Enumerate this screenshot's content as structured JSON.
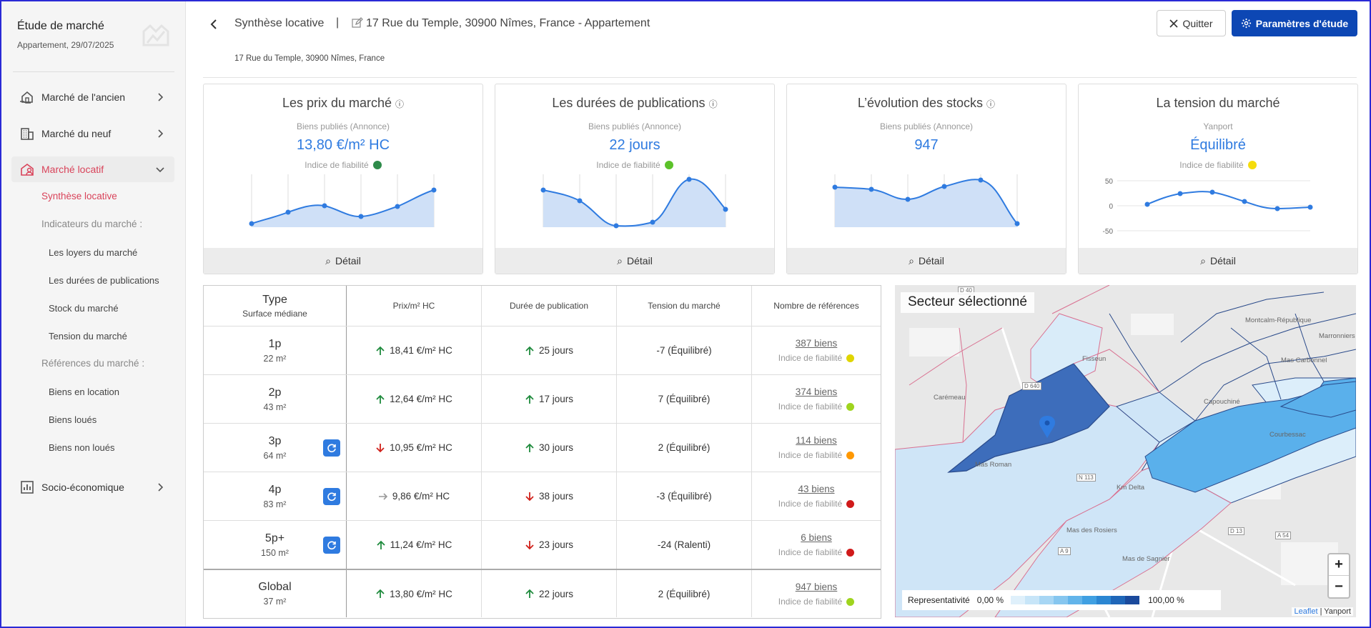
{
  "sidebar": {
    "title": "Étude de marché",
    "subtitle": "Appartement, 29/07/2025",
    "items": [
      {
        "label": "Marché de l'ancien"
      },
      {
        "label": "Marché du neuf"
      },
      {
        "label": "Marché locatif"
      },
      {
        "label": "Socio-économique"
      }
    ],
    "sub": {
      "current": "Synthèse locative",
      "group1": "Indicateurs du marché :",
      "loyers": "Les loyers du marché",
      "durees": "Les durées de publications",
      "stock": "Stock du marché",
      "tension": "Tension du marché",
      "group2": "Références du marché :",
      "location": "Biens en location",
      "loues": "Biens loués",
      "nonloues": "Biens non loués"
    }
  },
  "header": {
    "title": "Synthèse locative",
    "separator": "|",
    "address": "17 Rue du Temple, 30900 Nîmes, France - Appartement",
    "address_small": "17 Rue du Temple, 30900 Nîmes, France",
    "quit": "Quitter",
    "params": "Paramètres d'étude"
  },
  "cards": [
    {
      "title": "Les prix du marché",
      "sub": "Biens publiés (Annonce)",
      "value": "13,80 €/m² HC",
      "fiab": "Indice de fiabilité",
      "dot": "#2e8b4a",
      "detail": "Détail"
    },
    {
      "title": "Les durées de publications",
      "sub": "Biens publiés (Annonce)",
      "value": "22 jours",
      "fiab": "Indice de fiabilité",
      "dot": "#5cc22a",
      "detail": "Détail"
    },
    {
      "title": "L’évolution des stocks",
      "sub": "Biens publiés (Annonce)",
      "value": "947",
      "detail": "Détail"
    },
    {
      "title": "La tension du marché",
      "sub": "Yanport",
      "value": "Équilibré",
      "fiab": "Indice de fiabilité",
      "dot": "#f5dc0c",
      "detail": "Détail",
      "y_ticks": [
        "50",
        "0",
        "-50"
      ]
    }
  ],
  "table": {
    "headers": {
      "type": "Type",
      "surface": "Surface médiane",
      "prix": "Prix/m² HC",
      "duree": "Durée de publication",
      "tension": "Tension du marché",
      "refs": "Nombre de références"
    },
    "fiab": "Indice de fiabilité",
    "rows": [
      {
        "type": "1p",
        "surface": "22 m²",
        "prix": "18,41 €/m² HC",
        "duree": "25 jours",
        "tension": "-7 (Équilibré)",
        "refs": "387 biens"
      },
      {
        "type": "2p",
        "surface": "43 m²",
        "prix": "12,64 €/m² HC",
        "duree": "17 jours",
        "tension": "7 (Équilibré)",
        "refs": "374 biens"
      },
      {
        "type": "3p",
        "surface": "64 m²",
        "prix": "10,95 €/m² HC",
        "duree": "30 jours",
        "tension": "2 (Équilibré)",
        "refs": "114 biens"
      },
      {
        "type": "4p",
        "surface": "83 m²",
        "prix": "9,86 €/m² HC",
        "duree": "38 jours",
        "tension": "-3 (Équilibré)",
        "refs": "43 biens"
      },
      {
        "type": "5p+",
        "surface": "150 m²",
        "prix": "11,24 €/m² HC",
        "duree": "23 jours",
        "tension": "-24 (Ralenti)",
        "refs": "6 biens"
      },
      {
        "type": "Global",
        "surface": "37 m²",
        "prix": "13,80 €/m² HC",
        "duree": "22 jours",
        "tension": "2 (Équilibré)",
        "refs": "947 biens"
      }
    ]
  },
  "map": {
    "title": "Secteur sélectionné",
    "zoom_in": "+",
    "zoom_out": "−",
    "legend_label": "Representativité",
    "legend_min": "0,00 %",
    "legend_max": "100,00 %",
    "attr_leaflet": "Leaflet",
    "attr_sep": "|",
    "attr_yanport": "Yanport",
    "labels": [
      "Carémeau",
      "Mas Roman",
      "Fisseun",
      "Capouchiné",
      "Montcalm-République",
      "Mas Carbonnel",
      "Marronniers",
      "Courbessac",
      "Km Delta",
      "Mas de Sagnier",
      "Mas des Rosiers",
      "D 640",
      "D 13",
      "N 113",
      "A 54",
      "A 9",
      "D 40"
    ]
  }
}
